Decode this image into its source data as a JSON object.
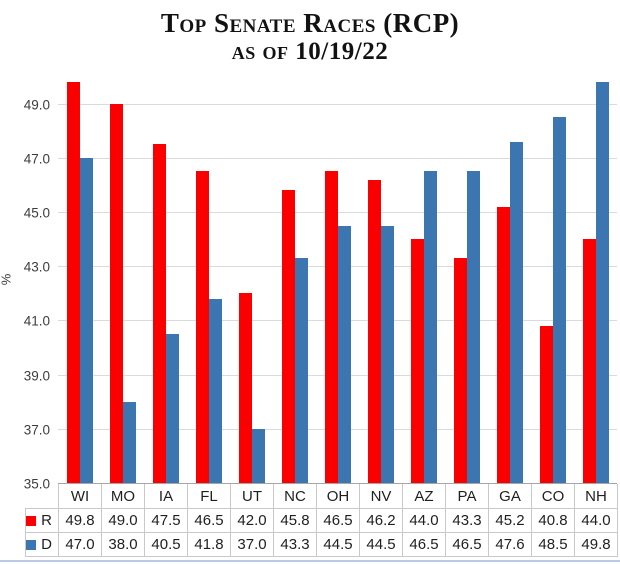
{
  "title": {
    "line1": "Top Senate Races (RCP)",
    "line2": "as of 10/19/22"
  },
  "chart_data": {
    "type": "bar",
    "title": "Top Senate Races (RCP) as of 10/19/22",
    "categories": [
      "WI",
      "MO",
      "IA",
      "FL",
      "UT",
      "NC",
      "OH",
      "NV",
      "AZ",
      "PA",
      "GA",
      "CO",
      "NH"
    ],
    "series": [
      {
        "name": "R",
        "color": "#fb0000",
        "values": [
          49.8,
          49.0,
          47.5,
          46.5,
          42.0,
          45.8,
          46.5,
          46.2,
          44.0,
          43.3,
          45.2,
          40.8,
          44.0
        ]
      },
      {
        "name": "D",
        "color": "#3b76b0",
        "values": [
          47.0,
          38.0,
          40.5,
          41.8,
          37.0,
          43.3,
          44.5,
          44.5,
          46.5,
          46.5,
          47.6,
          48.5,
          49.8
        ]
      }
    ],
    "xlabel": "",
    "ylabel": "%",
    "ylim": [
      35.0,
      50.0
    ],
    "yticks": [
      49.0,
      47.0,
      45.0,
      43.0,
      41.0,
      39.0,
      37.0,
      35.0
    ],
    "grid": true,
    "legend_position": "table-left"
  },
  "colors": {
    "gridline": "#dadada",
    "baseline": "#a6a6a6",
    "table_border": "#c9c9c9",
    "bottom_rule": "#b9c9e6",
    "text": "#1f1f1f"
  }
}
